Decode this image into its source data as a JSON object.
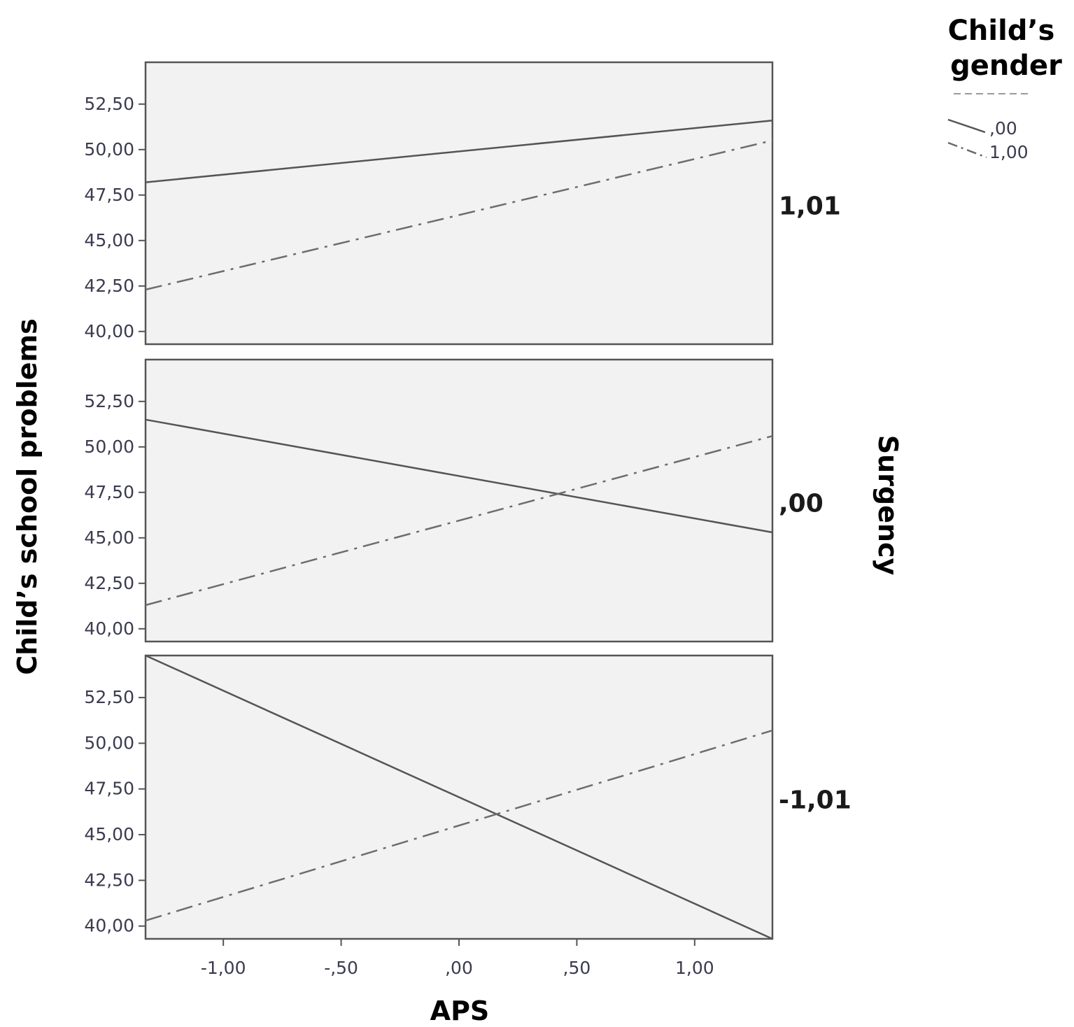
{
  "chart_data": {
    "type": "line",
    "xlabel": "APS",
    "ylabel": "Child’s school problems",
    "facet_label": "Surgency",
    "x_ticks": [
      "-1,00",
      "-,50",
      ",00",
      ",50",
      "1,00"
    ],
    "y_ticks": [
      "40,00",
      "42,50",
      "45,00",
      "47,50",
      "50,00",
      "52,50"
    ],
    "xlim": [
      -1.33,
      1.33
    ],
    "ylim": [
      39.3,
      54.8
    ],
    "grid": false,
    "legend": {
      "title": "Child’s gender",
      "position": "top-right",
      "entries": [
        {
          "label": ",00",
          "style": "solid"
        },
        {
          "label": "1,00",
          "style": "dash-dot"
        }
      ]
    },
    "panels": [
      {
        "label": "1,01",
        "series": [
          {
            "name": ",00",
            "style": "solid",
            "x": [
              -1.33,
              1.33
            ],
            "y": [
              48.2,
              51.6
            ]
          },
          {
            "name": "1,00",
            "style": "dash-dot",
            "x": [
              -1.33,
              1.33
            ],
            "y": [
              42.3,
              50.5
            ]
          }
        ]
      },
      {
        "label": ",00",
        "series": [
          {
            "name": ",00",
            "style": "solid",
            "x": [
              -1.33,
              1.33
            ],
            "y": [
              51.5,
              45.3
            ]
          },
          {
            "name": "1,00",
            "style": "dash-dot",
            "x": [
              -1.33,
              1.33
            ],
            "y": [
              41.3,
              50.6
            ]
          }
        ]
      },
      {
        "label": "-1,01",
        "series": [
          {
            "name": ",00",
            "style": "solid",
            "x": [
              -1.33,
              1.33
            ],
            "y": [
              54.8,
              39.3
            ]
          },
          {
            "name": "1,00",
            "style": "dash-dot",
            "x": [
              -1.33,
              1.33
            ],
            "y": [
              40.3,
              50.7
            ]
          }
        ]
      }
    ]
  }
}
